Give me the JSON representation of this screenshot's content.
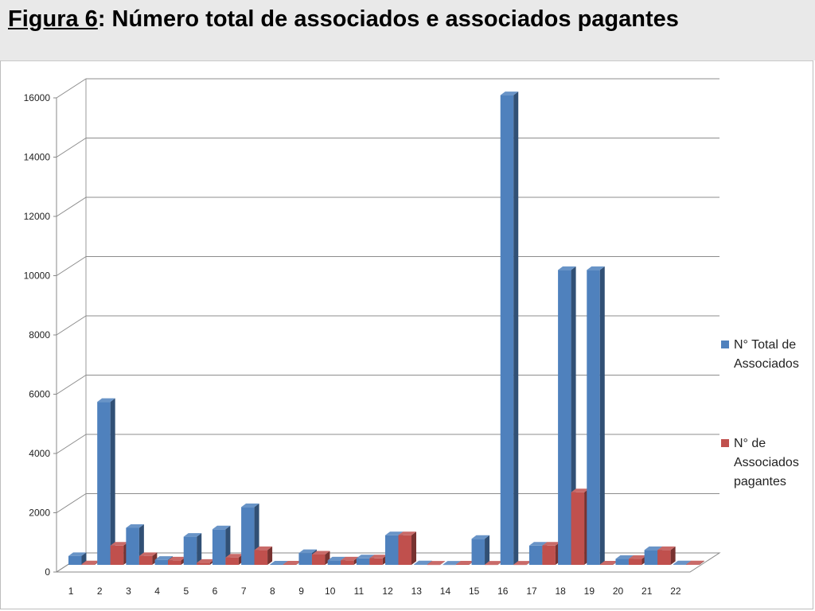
{
  "header": {
    "title_figure": "Figura 6",
    "title_rest": ": Número total de associados e associados pagantes"
  },
  "chart_data": {
    "type": "bar",
    "title": "Figura 6: Número total de associados e associados pagantes",
    "xlabel": "",
    "ylabel": "",
    "ylim": [
      0,
      16000
    ],
    "yticks": [
      0,
      2000,
      4000,
      6000,
      8000,
      10000,
      12000,
      14000,
      16000
    ],
    "categories": [
      "1",
      "2",
      "3",
      "4",
      "5",
      "6",
      "7",
      "8",
      "9",
      "10",
      "11",
      "12",
      "13",
      "14",
      "15",
      "16",
      "17",
      "18",
      "19",
      "20",
      "21",
      "22"
    ],
    "grid": true,
    "legend_position": "right",
    "series": [
      {
        "name": "N° Total de Associados",
        "color": "#4f81bd",
        "values": [
          300,
          5500,
          1250,
          170,
          950,
          1200,
          1950,
          15,
          400,
          150,
          220,
          1000,
          20,
          10,
          880,
          15850,
          650,
          9950,
          9950,
          200,
          500,
          20
        ]
      },
      {
        "name": "N° de Associados pagantes",
        "color": "#c0504d",
        "values": [
          20,
          650,
          300,
          150,
          70,
          250,
          500,
          15,
          350,
          150,
          220,
          1000,
          10,
          15,
          10,
          10,
          650,
          2450,
          15,
          200,
          500,
          20
        ]
      }
    ]
  }
}
